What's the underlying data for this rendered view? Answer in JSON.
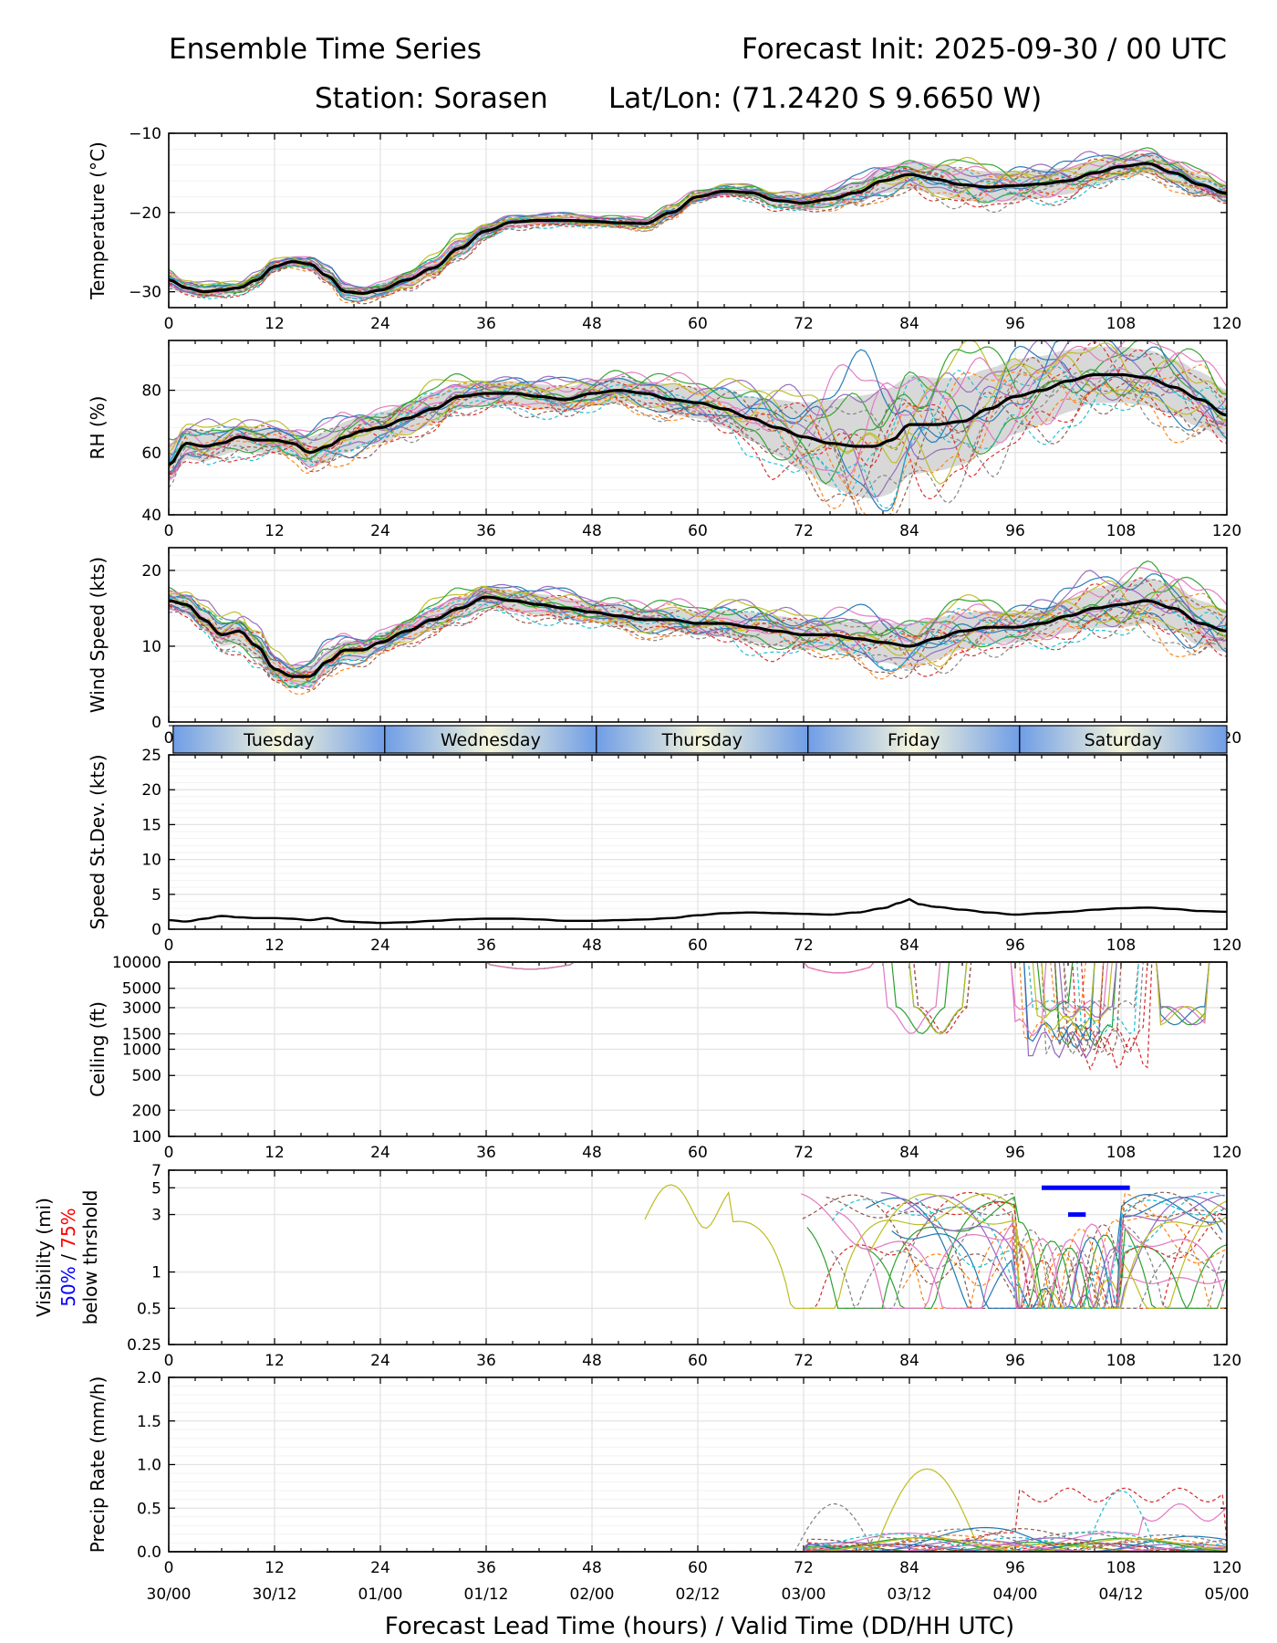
{
  "header": {
    "title_left": "Ensemble Time Series",
    "title_right": "Forecast Init: 2025-09-30 / 00 UTC",
    "station": "Station: Sorasen",
    "latlon": "Lat/Lon: (71.2420 S 9.6650 W)"
  },
  "colors": {
    "mean": "#000000",
    "spread": "#d8d8d8",
    "grid": "#e3e3e3",
    "day_band_edge": "#6f9de6",
    "day_band_center": "#f6f6dc",
    "vis_50pct": "#0000ff",
    "vis_75pct": "#ff0000",
    "members": [
      "#1f77b4",
      "#ff7f0e",
      "#2ca02c",
      "#d62728",
      "#9467bd",
      "#8c564b",
      "#e377c2",
      "#7f7f7f",
      "#bcbd22",
      "#17becf"
    ]
  },
  "chart_data": [
    {
      "id": "temperature",
      "type": "line",
      "ylabel": "Temperature (°C)",
      "ylim": [
        -32,
        -10
      ],
      "yticks": [
        -30,
        -20,
        -10
      ],
      "ytick_labels": [
        "−30",
        "−20",
        "−10"
      ],
      "x": [
        0,
        2,
        4,
        6,
        8,
        10,
        12,
        14,
        16,
        18,
        20,
        22,
        24,
        27,
        30,
        33,
        36,
        39,
        42,
        45,
        48,
        51,
        54,
        57,
        60,
        63,
        66,
        69,
        72,
        75,
        78,
        81,
        84,
        87,
        90,
        93,
        96,
        99,
        102,
        105,
        108,
        111,
        114,
        117,
        120
      ],
      "mean": [
        -28.5,
        -29.5,
        -30.0,
        -29.8,
        -29.5,
        -28.5,
        -26.8,
        -26.2,
        -26.5,
        -28.0,
        -30.0,
        -30.2,
        -29.8,
        -28.5,
        -27.0,
        -24.5,
        -22.3,
        -21.2,
        -21.0,
        -21.0,
        -21.1,
        -21.3,
        -21.4,
        -20.0,
        -18.0,
        -17.3,
        -17.5,
        -18.5,
        -18.8,
        -18.3,
        -17.5,
        -16.0,
        -15.2,
        -15.8,
        -16.5,
        -16.8,
        -16.6,
        -16.4,
        -16.0,
        -15.0,
        -14.2,
        -13.8,
        -15.0,
        -16.5,
        -17.6
      ],
      "spread": [
        1.0,
        0.8,
        0.8,
        0.7,
        0.6,
        0.7,
        0.7,
        0.6,
        0.7,
        0.8,
        0.8,
        0.8,
        0.9,
        1.0,
        1.0,
        1.1,
        0.9,
        0.7,
        0.6,
        0.6,
        0.6,
        0.6,
        0.6,
        0.7,
        0.7,
        0.6,
        0.7,
        0.8,
        1.0,
        1.1,
        1.3,
        1.6,
        1.8,
        1.9,
        2.0,
        2.0,
        1.9,
        1.8,
        1.7,
        1.6,
        1.4,
        1.3,
        1.3,
        1.3,
        1.2
      ],
      "members": 20
    },
    {
      "id": "rh",
      "type": "line",
      "ylabel": "RH (%)",
      "ylim": [
        40,
        96
      ],
      "yticks": [
        40,
        60,
        80
      ],
      "ytick_labels": [
        "40",
        "60",
        "80"
      ],
      "x": [
        0,
        2,
        4,
        6,
        8,
        10,
        12,
        14,
        16,
        18,
        20,
        22,
        24,
        27,
        30,
        33,
        36,
        39,
        42,
        45,
        48,
        51,
        54,
        57,
        60,
        63,
        66,
        69,
        72,
        75,
        78,
        80,
        82,
        84,
        87,
        90,
        93,
        96,
        99,
        102,
        105,
        108,
        111,
        114,
        117,
        120
      ],
      "mean": [
        56,
        63,
        62,
        63,
        65,
        64,
        64,
        63,
        60,
        62,
        65,
        67,
        68,
        71,
        74,
        78,
        79,
        79,
        78,
        77,
        79,
        80,
        79,
        77,
        76,
        74,
        71,
        68,
        65,
        63,
        62,
        62,
        64,
        69,
        69,
        70,
        74,
        78,
        80,
        83,
        85,
        85,
        84,
        81,
        77,
        72
      ],
      "spread": [
        6,
        5,
        5,
        4,
        4,
        4,
        4,
        4,
        5,
        5,
        5,
        5,
        5,
        5,
        5,
        4,
        4,
        4,
        4,
        4,
        4,
        4,
        4,
        5,
        5,
        6,
        7,
        9,
        11,
        14,
        16,
        17,
        17,
        16,
        15,
        14,
        13,
        12,
        11,
        10,
        9,
        9,
        9,
        9,
        9,
        8
      ],
      "members": 20
    },
    {
      "id": "wind_speed",
      "type": "line",
      "ylabel": "Wind Speed (kts)",
      "ylim": [
        0,
        23
      ],
      "yticks": [
        0,
        10,
        20
      ],
      "ytick_labels": [
        "0",
        "10",
        "20"
      ],
      "x": [
        0,
        2,
        4,
        6,
        8,
        10,
        12,
        14,
        16,
        18,
        20,
        22,
        24,
        27,
        30,
        33,
        36,
        39,
        42,
        45,
        48,
        51,
        54,
        57,
        60,
        63,
        66,
        69,
        72,
        75,
        78,
        81,
        84,
        87,
        90,
        93,
        96,
        99,
        102,
        105,
        108,
        111,
        114,
        117,
        120
      ],
      "mean": [
        16,
        15.5,
        13.5,
        11.5,
        12.0,
        10.0,
        7.0,
        6.0,
        6.0,
        8.0,
        9.5,
        9.5,
        10.5,
        12.0,
        13.5,
        15.0,
        16.5,
        16.0,
        15.5,
        15.0,
        14.5,
        14.0,
        13.5,
        13.5,
        13.0,
        13.0,
        12.5,
        12.0,
        11.5,
        11.5,
        11.0,
        10.5,
        10.0,
        11.0,
        12.0,
        12.5,
        12.5,
        13.0,
        14.0,
        15.0,
        15.5,
        16.0,
        15.0,
        13.0,
        12.0
      ],
      "spread": [
        1.2,
        1.3,
        1.4,
        1.5,
        1.6,
        1.7,
        1.5,
        1.4,
        1.4,
        1.5,
        1.3,
        1.2,
        1.2,
        1.3,
        1.4,
        1.4,
        1.4,
        1.4,
        1.4,
        1.4,
        1.3,
        1.4,
        1.4,
        1.5,
        1.6,
        1.8,
        2.0,
        2.0,
        2.0,
        2.0,
        2.2,
        2.6,
        3.0,
        2.8,
        2.4,
        2.2,
        2.0,
        2.0,
        2.2,
        2.6,
        3.0,
        3.0,
        3.0,
        3.0,
        2.8
      ],
      "members": 20
    },
    {
      "id": "speed_stdev",
      "type": "line",
      "ylabel": "Speed St.Dev. (kts)",
      "ylim": [
        0,
        25
      ],
      "yticks": [
        0,
        5,
        10,
        15,
        20,
        25
      ],
      "ytick_labels": [
        "0",
        "5",
        "10",
        "15",
        "20",
        "25"
      ],
      "x": [
        0,
        2,
        4,
        6,
        8,
        10,
        12,
        14,
        16,
        18,
        20,
        22,
        24,
        27,
        30,
        33,
        36,
        39,
        42,
        45,
        48,
        51,
        54,
        57,
        60,
        63,
        66,
        69,
        72,
        75,
        78,
        81,
        83,
        84,
        85,
        87,
        90,
        93,
        96,
        99,
        102,
        105,
        108,
        111,
        114,
        117,
        120
      ],
      "values": [
        1.3,
        1.1,
        1.5,
        1.9,
        1.7,
        1.6,
        1.6,
        1.5,
        1.3,
        1.6,
        1.1,
        1.0,
        0.9,
        1.0,
        1.2,
        1.4,
        1.5,
        1.5,
        1.4,
        1.2,
        1.2,
        1.3,
        1.4,
        1.6,
        2.0,
        2.3,
        2.4,
        2.3,
        2.2,
        2.1,
        2.4,
        3.0,
        3.8,
        4.3,
        3.6,
        3.2,
        2.8,
        2.4,
        2.1,
        2.3,
        2.5,
        2.8,
        3.0,
        3.1,
        2.9,
        2.6,
        2.5
      ],
      "day_band": [
        "Tuesday",
        "Wednesday",
        "Thursday",
        "Friday",
        "Saturday"
      ]
    },
    {
      "id": "ceiling",
      "type": "line",
      "ylabel": "Ceiling (ft)",
      "scale": "log",
      "ylim": [
        100,
        10000
      ],
      "yticks": [
        100,
        200,
        500,
        1000,
        1500,
        3000,
        5000,
        10000
      ],
      "ytick_labels": [
        "100",
        "200",
        "500",
        "1000",
        "1500",
        "3000",
        "5000",
        "10000"
      ],
      "members": 20
    },
    {
      "id": "visibility",
      "type": "line",
      "ylabel": "Visibility (mi)",
      "ylabel_line2_a": "50%",
      "ylabel_line2_sep": " / ",
      "ylabel_line2_b": "75%",
      "ylabel_line3": "below thrshold",
      "scale": "log",
      "ylim": [
        0.25,
        7
      ],
      "yticks": [
        0.25,
        0.5,
        1,
        3,
        5,
        7
      ],
      "ytick_labels": [
        "0.25",
        "0.5",
        "1",
        "3",
        "5",
        "7"
      ],
      "threshold_50pct": [
        {
          "x": [
            99,
            109
          ],
          "y": 5
        },
        {
          "x": [
            102,
            104
          ],
          "y": 3
        }
      ],
      "members": 20
    },
    {
      "id": "precip",
      "type": "line",
      "ylabel": "Precip Rate (mm/h)",
      "ylim": [
        0,
        2.0
      ],
      "yticks": [
        0.0,
        0.5,
        1.0,
        1.5,
        2.0
      ],
      "ytick_labels": [
        "0.0",
        "0.5",
        "1.0",
        "1.5",
        "2.0"
      ],
      "members": 20
    }
  ],
  "xaxis": {
    "range": [
      0,
      120
    ],
    "ticks": [
      0,
      12,
      24,
      36,
      48,
      60,
      72,
      84,
      96,
      108,
      120
    ],
    "tick_labels": [
      "0",
      "12",
      "24",
      "36",
      "48",
      "60",
      "72",
      "84",
      "96",
      "108",
      "120"
    ],
    "valid_labels": [
      "30/00",
      "30/12",
      "01/00",
      "01/12",
      "02/00",
      "02/12",
      "03/00",
      "03/12",
      "04/00",
      "04/12",
      "05/00"
    ],
    "xlabel": "Forecast Lead Time (hours) / Valid Time (DD/HH UTC)"
  }
}
